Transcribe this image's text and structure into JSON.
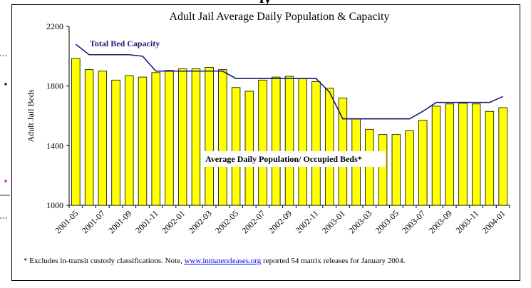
{
  "page": {
    "clipped_heading": "ly",
    "footnote_prefix": "* Excludes in-transit custody classifications. Note, ",
    "footnote_link": "www.inmatereleases.org",
    "footnote_suffix": " reported 54 matrix releases for January 2004."
  },
  "chart_data": {
    "type": "bar",
    "title": "Adult Jail Average Daily Population & Capacity",
    "ylabel": "Adult Jail Beds",
    "xlabel": "",
    "ylim": [
      1000,
      2200
    ],
    "yticks": [
      1000,
      1400,
      1800,
      2200
    ],
    "categories": [
      "2001-05",
      "2001-06",
      "2001-07",
      "2001-08",
      "2001-09",
      "2001-10",
      "2001-11",
      "2001-12",
      "2002-01",
      "2002-02",
      "2002-03",
      "2002-04",
      "2002-05",
      "2002-06",
      "2002-07",
      "2002-08",
      "2002-09",
      "2002-10",
      "2002-11",
      "2002-12",
      "2003-01",
      "2003-02",
      "2003-03",
      "2003-04",
      "2003-05",
      "2003-06",
      "2003-07",
      "2003-08",
      "2003-09",
      "2003-10",
      "2003-11",
      "2003-12",
      "2004-01"
    ],
    "xtick_labels": [
      "2001-05",
      "2001-07",
      "2001-09",
      "2001-11",
      "2002-01",
      "2002-03",
      "2002-05",
      "2002-07",
      "2002-09",
      "2002-11",
      "2003-01",
      "2003-03",
      "2003-05",
      "2003-07",
      "2003-09",
      "2003-11",
      "2004-01"
    ],
    "series": [
      {
        "name": "Average Daily Population/ Occupied Beds*",
        "type": "bar",
        "color": "#ffff00",
        "values": [
          1985,
          1910,
          1900,
          1840,
          1870,
          1860,
          1890,
          1905,
          1915,
          1915,
          1925,
          1910,
          1790,
          1765,
          1840,
          1860,
          1865,
          1850,
          1830,
          1785,
          1720,
          1580,
          1510,
          1475,
          1475,
          1500,
          1570,
          1665,
          1680,
          1685,
          1680,
          1630,
          1655
        ]
      },
      {
        "name": "Total Bed Capacity",
        "type": "line",
        "color": "#1a1a7a",
        "values": [
          2080,
          2010,
          2010,
          2010,
          2010,
          2000,
          1900,
          1900,
          1900,
          1900,
          1900,
          1900,
          1850,
          1850,
          1850,
          1850,
          1850,
          1850,
          1850,
          1760,
          1580,
          1580,
          1580,
          1580,
          1580,
          1580,
          1630,
          1690,
          1690,
          1690,
          1690,
          1690,
          1730
        ]
      }
    ],
    "grid": false,
    "legend": "inline labels"
  }
}
